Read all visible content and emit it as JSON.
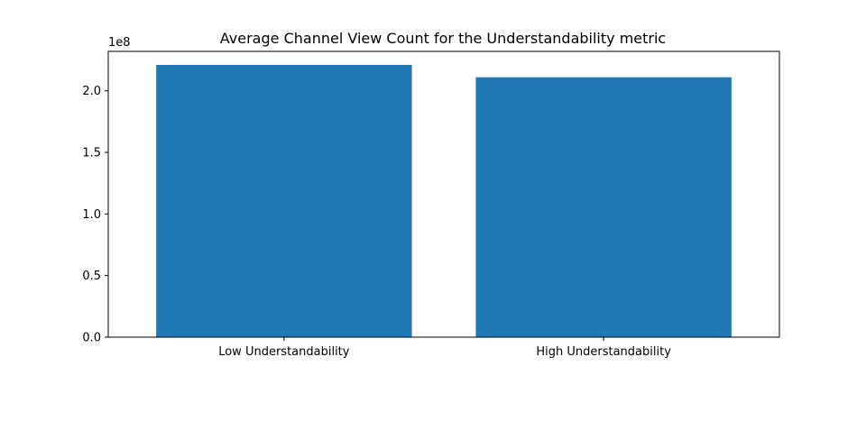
{
  "chart_data": {
    "type": "bar",
    "title": "Average Channel View Count for the Understandability metric",
    "xlabel": "",
    "ylabel": "",
    "categories": [
      "Low Understandability",
      "High Understandability"
    ],
    "values": [
      221000000,
      211000000
    ],
    "ylim": [
      0,
      232000000
    ],
    "yticks": [
      0,
      50000000,
      100000000,
      150000000,
      200000000
    ],
    "ytick_labels": [
      "0.0",
      "0.5",
      "1.0",
      "1.5",
      "2.0"
    ],
    "offset_label": "1e8",
    "bar_color": "#1f77b4",
    "grid": false,
    "legend": "none"
  }
}
